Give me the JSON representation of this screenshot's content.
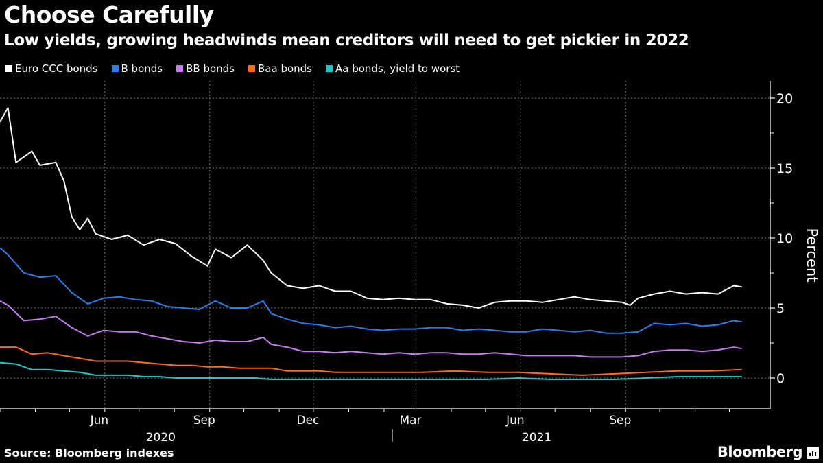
{
  "header": {
    "title": "Choose Carefully",
    "subtitle": "Low yields, growing headwinds mean creditors will need to get pickier in 2022"
  },
  "footer": {
    "source": "Source: Bloomberg indexes",
    "brand": "Bloomberg"
  },
  "chart_data": {
    "type": "line",
    "title": "Choose Carefully",
    "subtitle": "Low yields, growing headwinds mean creditors will need to get pickier in 2022",
    "xlabel": "",
    "ylabel": "Percent",
    "ylim": [
      -2.5,
      21
    ],
    "yticks": [
      0,
      5,
      10,
      15,
      20
    ],
    "xlim": [
      "2020-03-01",
      "2021-12-20"
    ],
    "xticks": [
      {
        "label": "Jun",
        "date": "2020-06-01"
      },
      {
        "label": "Sep",
        "date": "2020-09-01"
      },
      {
        "label": "Dec",
        "date": "2020-12-01"
      },
      {
        "label": "Mar",
        "date": "2021-03-01"
      },
      {
        "label": "Jun",
        "date": "2021-06-01"
      },
      {
        "label": "Sep",
        "date": "2021-09-01"
      }
    ],
    "year_labels": [
      {
        "label": "2020",
        "date": "2020-07-20"
      },
      {
        "label": "2021",
        "date": "2021-06-15"
      }
    ],
    "grid": true,
    "legend": "top-left",
    "series": [
      {
        "name": "Euro CCC bonds",
        "color": "#ffffff",
        "x": [
          "2020-03-01",
          "2020-03-08",
          "2020-03-15",
          "2020-03-22",
          "2020-03-29",
          "2020-04-05",
          "2020-04-12",
          "2020-04-19",
          "2020-04-26",
          "2020-05-03",
          "2020-05-10",
          "2020-05-17",
          "2020-05-24",
          "2020-05-31",
          "2020-06-07",
          "2020-06-21",
          "2020-07-05",
          "2020-07-19",
          "2020-08-02",
          "2020-08-16",
          "2020-08-30",
          "2020-09-06",
          "2020-09-20",
          "2020-10-04",
          "2020-10-18",
          "2020-10-25",
          "2020-11-08",
          "2020-11-22",
          "2020-12-06",
          "2020-12-20",
          "2021-01-03",
          "2021-01-17",
          "2021-01-31",
          "2021-02-14",
          "2021-02-28",
          "2021-03-14",
          "2021-03-28",
          "2021-04-11",
          "2021-04-25",
          "2021-05-09",
          "2021-05-23",
          "2021-06-06",
          "2021-06-20",
          "2021-07-04",
          "2021-07-18",
          "2021-08-01",
          "2021-08-15",
          "2021-08-29",
          "2021-09-05",
          "2021-09-12",
          "2021-09-26",
          "2021-10-10",
          "2021-10-24",
          "2021-11-07",
          "2021-11-21",
          "2021-12-05",
          "2021-12-12"
        ],
        "values": [
          18.3,
          19.3,
          15.4,
          15.8,
          16.2,
          15.2,
          15.3,
          15.4,
          14.1,
          11.5,
          10.6,
          11.4,
          10.3,
          10.1,
          9.9,
          10.2,
          9.5,
          9.9,
          9.6,
          8.7,
          8.0,
          9.2,
          8.6,
          9.5,
          8.4,
          7.5,
          6.6,
          6.4,
          6.6,
          6.2,
          6.2,
          5.7,
          5.6,
          5.7,
          5.6,
          5.6,
          5.3,
          5.2,
          5.0,
          5.4,
          5.5,
          5.5,
          5.4,
          5.6,
          5.8,
          5.6,
          5.5,
          5.4,
          5.2,
          5.7,
          6.0,
          6.2,
          6.0,
          6.1,
          6.0,
          6.6,
          6.5
        ]
      },
      {
        "name": "B bonds",
        "color": "#2b7de9",
        "x": [
          "2020-03-01",
          "2020-03-08",
          "2020-03-22",
          "2020-04-05",
          "2020-04-19",
          "2020-05-03",
          "2020-05-17",
          "2020-05-31",
          "2020-06-14",
          "2020-06-28",
          "2020-07-12",
          "2020-07-26",
          "2020-08-09",
          "2020-08-23",
          "2020-09-06",
          "2020-09-20",
          "2020-10-04",
          "2020-10-18",
          "2020-10-25",
          "2020-11-08",
          "2020-11-22",
          "2020-12-06",
          "2020-12-20",
          "2021-01-03",
          "2021-01-17",
          "2021-01-31",
          "2021-02-14",
          "2021-02-28",
          "2021-03-14",
          "2021-03-28",
          "2021-04-11",
          "2021-04-25",
          "2021-05-09",
          "2021-05-23",
          "2021-06-06",
          "2021-06-20",
          "2021-07-04",
          "2021-07-18",
          "2021-08-01",
          "2021-08-15",
          "2021-08-29",
          "2021-09-12",
          "2021-09-26",
          "2021-10-10",
          "2021-10-24",
          "2021-11-07",
          "2021-11-21",
          "2021-12-05",
          "2021-12-12"
        ],
        "values": [
          9.3,
          8.8,
          7.5,
          7.2,
          7.3,
          6.1,
          5.3,
          5.7,
          5.8,
          5.6,
          5.5,
          5.1,
          5.0,
          4.9,
          5.5,
          5.0,
          5.0,
          5.5,
          4.6,
          4.2,
          3.9,
          3.8,
          3.6,
          3.7,
          3.5,
          3.4,
          3.5,
          3.5,
          3.6,
          3.6,
          3.4,
          3.5,
          3.4,
          3.3,
          3.3,
          3.5,
          3.4,
          3.3,
          3.4,
          3.2,
          3.2,
          3.3,
          3.9,
          3.8,
          3.9,
          3.7,
          3.8,
          4.1,
          4.0
        ]
      },
      {
        "name": "BB bonds",
        "color": "#c77cf0",
        "x": [
          "2020-03-01",
          "2020-03-08",
          "2020-03-22",
          "2020-04-05",
          "2020-04-19",
          "2020-05-03",
          "2020-05-17",
          "2020-05-31",
          "2020-06-14",
          "2020-06-28",
          "2020-07-12",
          "2020-07-26",
          "2020-08-09",
          "2020-08-23",
          "2020-09-06",
          "2020-09-20",
          "2020-10-04",
          "2020-10-18",
          "2020-10-25",
          "2020-11-08",
          "2020-11-22",
          "2020-12-06",
          "2020-12-20",
          "2021-01-03",
          "2021-01-17",
          "2021-01-31",
          "2021-02-14",
          "2021-02-28",
          "2021-03-14",
          "2021-03-28",
          "2021-04-11",
          "2021-04-25",
          "2021-05-09",
          "2021-05-23",
          "2021-06-06",
          "2021-06-20",
          "2021-07-04",
          "2021-07-18",
          "2021-08-01",
          "2021-08-15",
          "2021-08-29",
          "2021-09-12",
          "2021-09-26",
          "2021-10-10",
          "2021-10-24",
          "2021-11-07",
          "2021-11-21",
          "2021-12-05",
          "2021-12-12"
        ],
        "values": [
          5.5,
          5.2,
          4.1,
          4.2,
          4.4,
          3.6,
          3.0,
          3.4,
          3.3,
          3.3,
          3.0,
          2.8,
          2.6,
          2.5,
          2.7,
          2.6,
          2.6,
          2.9,
          2.4,
          2.2,
          1.9,
          1.9,
          1.8,
          1.9,
          1.8,
          1.7,
          1.8,
          1.7,
          1.8,
          1.8,
          1.7,
          1.7,
          1.8,
          1.7,
          1.6,
          1.6,
          1.6,
          1.6,
          1.5,
          1.5,
          1.5,
          1.6,
          1.9,
          2.0,
          2.0,
          1.9,
          2.0,
          2.2,
          2.1
        ]
      },
      {
        "name": "Baa bonds",
        "color": "#ff6a1a",
        "x": [
          "2020-03-01",
          "2020-03-15",
          "2020-03-29",
          "2020-04-12",
          "2020-04-26",
          "2020-05-10",
          "2020-05-24",
          "2020-06-07",
          "2020-06-21",
          "2020-07-05",
          "2020-07-19",
          "2020-08-02",
          "2020-08-16",
          "2020-08-30",
          "2020-09-13",
          "2020-09-27",
          "2020-10-11",
          "2020-10-25",
          "2020-11-08",
          "2020-11-22",
          "2020-12-06",
          "2020-12-20",
          "2021-01-03",
          "2021-02-07",
          "2021-03-07",
          "2021-04-04",
          "2021-05-02",
          "2021-05-30",
          "2021-06-27",
          "2021-07-25",
          "2021-08-22",
          "2021-09-19",
          "2021-10-17",
          "2021-11-14",
          "2021-12-12"
        ],
        "values": [
          2.2,
          2.2,
          1.7,
          1.8,
          1.6,
          1.4,
          1.2,
          1.2,
          1.2,
          1.1,
          1.0,
          0.9,
          0.9,
          0.8,
          0.8,
          0.7,
          0.7,
          0.7,
          0.5,
          0.5,
          0.5,
          0.4,
          0.4,
          0.4,
          0.4,
          0.5,
          0.4,
          0.4,
          0.3,
          0.2,
          0.3,
          0.4,
          0.5,
          0.5,
          0.6
        ]
      },
      {
        "name": "Aa bonds, yield to worst",
        "color": "#1fc8c8",
        "x": [
          "2020-03-01",
          "2020-03-15",
          "2020-03-29",
          "2020-04-12",
          "2020-04-26",
          "2020-05-10",
          "2020-05-24",
          "2020-06-07",
          "2020-06-21",
          "2020-07-05",
          "2020-07-19",
          "2020-08-02",
          "2020-08-16",
          "2020-08-30",
          "2020-09-13",
          "2020-09-27",
          "2020-10-11",
          "2020-10-25",
          "2020-11-08",
          "2020-11-22",
          "2020-12-06",
          "2020-12-20",
          "2021-01-03",
          "2021-02-07",
          "2021-03-07",
          "2021-04-04",
          "2021-05-02",
          "2021-05-30",
          "2021-06-27",
          "2021-07-25",
          "2021-08-22",
          "2021-09-19",
          "2021-10-17",
          "2021-11-14",
          "2021-12-12"
        ],
        "values": [
          1.1,
          1.0,
          0.6,
          0.6,
          0.5,
          0.4,
          0.2,
          0.2,
          0.2,
          0.1,
          0.1,
          0.0,
          0.0,
          0.0,
          0.0,
          0.0,
          0.0,
          -0.1,
          -0.1,
          -0.1,
          -0.1,
          -0.1,
          -0.1,
          -0.1,
          -0.1,
          -0.1,
          -0.1,
          0.0,
          -0.1,
          -0.1,
          -0.1,
          0.0,
          0.1,
          0.1,
          0.1
        ]
      }
    ]
  }
}
